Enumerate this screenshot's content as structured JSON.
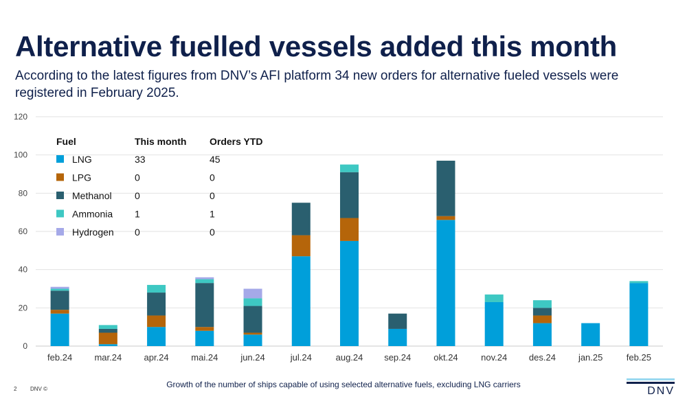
{
  "slide": {
    "title": "Alternative fuelled vessels added this month",
    "subtitle": "According to the latest figures from DNV’s AFI platform 34 new orders for alternative fueled vessels were registered in February 2025.",
    "footnote": "Growth of the number of ships capable of using selected alternative fuels, excluding LNG carriers",
    "page_number": "2",
    "copyright": "DNV ©",
    "logo_text": "DNV"
  },
  "colors": {
    "LNG": "#009fda",
    "LPG": "#b5650a",
    "Methanol": "#2a5f6f",
    "Ammonia": "#3ec8c3",
    "Hydrogen": "#a5a9e8",
    "logo_light": "#99d9f0",
    "logo_dark": "#0f204b"
  },
  "legend_table": {
    "headers": [
      "Fuel",
      "This month",
      "Orders YTD"
    ],
    "rows": [
      {
        "fuel": "LNG",
        "this_month": "33",
        "ytd": "45"
      },
      {
        "fuel": "LPG",
        "this_month": "0",
        "ytd": "0"
      },
      {
        "fuel": "Methanol",
        "this_month": "0",
        "ytd": "0"
      },
      {
        "fuel": "Ammonia",
        "this_month": "1",
        "ytd": "1"
      },
      {
        "fuel": "Hydrogen",
        "this_month": "0",
        "ytd": "0"
      }
    ]
  },
  "chart_data": {
    "type": "bar",
    "stacked": true,
    "title": "",
    "xlabel": "",
    "ylabel": "",
    "ylim": [
      0,
      120
    ],
    "yticks": [
      0,
      20,
      40,
      60,
      80,
      100,
      120
    ],
    "grid": true,
    "categories": [
      "feb.24",
      "mar.24",
      "apr.24",
      "mai.24",
      "jun.24",
      "jul.24",
      "aug.24",
      "sep.24",
      "okt.24",
      "nov.24",
      "des.24",
      "jan.25",
      "feb.25"
    ],
    "series": [
      {
        "name": "LNG",
        "values": [
          17,
          1,
          10,
          8,
          6,
          47,
          55,
          9,
          66,
          23,
          12,
          12,
          33
        ]
      },
      {
        "name": "LPG",
        "values": [
          2,
          6,
          6,
          2,
          1,
          11,
          12,
          0,
          2,
          0,
          4,
          0,
          0
        ]
      },
      {
        "name": "Methanol",
        "values": [
          10,
          2,
          12,
          23,
          14,
          17,
          24,
          8,
          29,
          0,
          4,
          0,
          0
        ]
      },
      {
        "name": "Ammonia",
        "values": [
          1,
          2,
          4,
          2,
          4,
          0,
          4,
          0,
          0,
          4,
          4,
          0,
          1
        ]
      },
      {
        "name": "Hydrogen",
        "values": [
          1,
          0,
          0,
          1,
          5,
          0,
          0,
          0,
          0,
          0,
          0,
          0,
          0
        ]
      }
    ]
  }
}
